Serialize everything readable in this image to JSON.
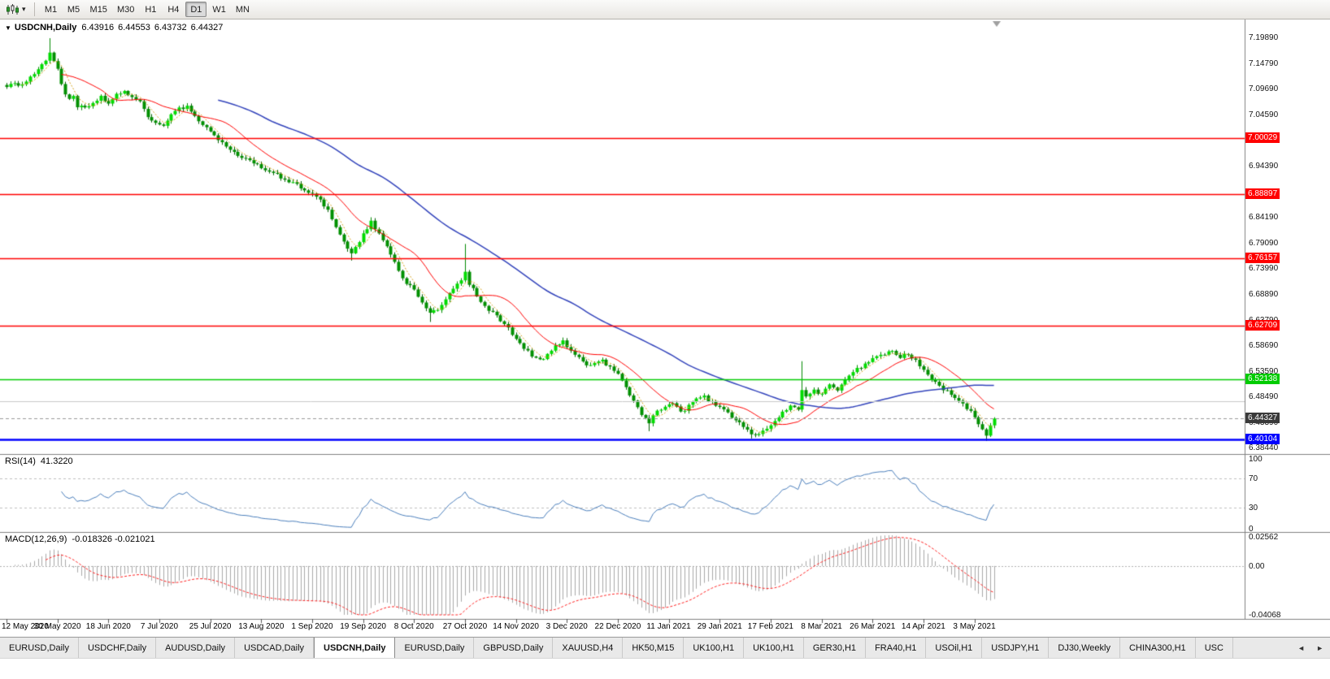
{
  "toolbar": {
    "timeframe_labels": [
      "M1",
      "M5",
      "M15",
      "M30",
      "H1",
      "H4",
      "D1",
      "W1",
      "MN"
    ],
    "active_timeframe": "D1"
  },
  "chart_header": {
    "collapse_arrow": "▼",
    "title": "USDCNH,Daily",
    "open": "6.43916",
    "high": "6.44553",
    "low": "6.43732",
    "close": "6.44327"
  },
  "price_axis": {
    "ticks": [
      "7.19890",
      "7.14790",
      "7.09690",
      "7.04590",
      "6.99490",
      "6.94390",
      "6.89290",
      "6.84190",
      "6.79090",
      "6.73990",
      "6.68890",
      "6.63790",
      "6.58690",
      "6.53590",
      "6.48490",
      "6.43390",
      "6.38440"
    ]
  },
  "rsi_panel": {
    "name": "RSI(14)",
    "value": "41.3220",
    "line_color": "#4A7EBB",
    "guide_levels": [
      70,
      30
    ],
    "ticks": [
      {
        "label": "100",
        "value": 100
      },
      {
        "label": "70",
        "value": 70
      },
      {
        "label": "30",
        "value": 30
      },
      {
        "label": "0",
        "value": 0
      }
    ]
  },
  "macd_panel": {
    "name": "MACD(12,26,9)",
    "value": "-0.018326 -0.021021",
    "histogram_color": "#A8A8A8",
    "signal_color": "#FF2020",
    "range": {
      "max": 0.02562,
      "min": -0.04068
    },
    "ticks": [
      {
        "label": "0.02562",
        "value": 0.02562
      },
      {
        "label": "0.00",
        "value": 0
      },
      {
        "label": "-0.04068",
        "value": -0.04068
      }
    ]
  },
  "time_axis": {
    "labels": [
      "12 May 2020",
      "30 May 2020",
      "18 Jun 2020",
      "7 Jul 2020",
      "25 Jul 2020",
      "13 Aug 2020",
      "1 Sep 2020",
      "19 Sep 2020",
      "8 Oct 2020",
      "27 Oct 2020",
      "14 Nov 2020",
      "3 Dec 2020",
      "22 Dec 2020",
      "11 Jan 2021",
      "29 Jan 2021",
      "17 Feb 2021",
      "8 Mar 2021",
      "26 Mar 2021",
      "14 Apr 2021",
      "3 May 2021"
    ],
    "candles_per_label": 13
  },
  "tabs": {
    "scroll_left": "◄",
    "scroll_right": "►",
    "active_index": 4,
    "items": [
      "EURUSD,Daily",
      "USDCHF,Daily",
      "AUDUSD,Daily",
      "USDCAD,Daily",
      "USDCNH,Daily",
      "EURUSD,Daily",
      "GBPUSD,Daily",
      "XAUUSD,H4",
      "HK50,M15",
      "UK100,H1",
      "UK100,H1",
      "GER30,H1",
      "FRA40,H1",
      "USOil,H1",
      "USDJPY,H1",
      "DJ30,Weekly",
      "CHINA300,H1",
      "USC"
    ]
  },
  "chart_data": {
    "type": "candlestick",
    "symbol": "USDCNH",
    "timeframe": "Daily",
    "visible_count": 253,
    "y_range": {
      "top": 7.23602,
      "bottom": 6.37258
    },
    "y_tick_step": 0.051,
    "levels": [
      {
        "label": "7.00029",
        "value": 7.00029,
        "color": "#FF0000",
        "width": 1.5
      },
      {
        "label": "6.88897",
        "value": 6.88897,
        "color": "#FF0000",
        "width": 1.5
      },
      {
        "label": "6.76157",
        "value": 6.76157,
        "color": "#FF0000",
        "width": 1.5
      },
      {
        "label": "6.62709",
        "value": 6.62709,
        "color": "#FF0000",
        "width": 1.5
      },
      {
        "label": "6.52138",
        "value": 6.52138,
        "color": "#00CC00",
        "width": 1.5
      },
      {
        "label": "6.40104",
        "value": 6.40104,
        "color": "#0000FF",
        "width": 2.5
      },
      {
        "label": "",
        "value": 6.478,
        "color": "#C8C8C8",
        "width": 1
      }
    ],
    "current_price": {
      "label": "6.44327",
      "value": 6.44327,
      "badge_bg": "#3A3A3A",
      "line_color": "#9A9A9A"
    },
    "bull_color": "#00DC00",
    "bear_color": "#009000",
    "ma": [
      {
        "period": 5,
        "color": "#D4A017",
        "width": 1,
        "dash": [
          2,
          2
        ]
      },
      {
        "period": 15,
        "color": "#FF0000",
        "width": 1,
        "dash": []
      },
      {
        "period": 55,
        "color": "#3344BB",
        "width": 1.5,
        "dash": []
      }
    ],
    "close_anchors": [
      [
        0,
        7.1
      ],
      [
        2,
        7.11
      ],
      [
        4,
        7.105
      ],
      [
        6,
        7.125
      ],
      [
        8,
        7.135
      ],
      [
        10,
        7.155
      ],
      [
        11,
        7.168
      ],
      [
        12,
        7.15
      ],
      [
        13,
        7.135
      ],
      [
        14,
        7.11
      ],
      [
        15,
        7.085
      ],
      [
        16,
        7.075
      ],
      [
        17,
        7.082
      ],
      [
        18,
        7.065
      ],
      [
        20,
        7.058
      ],
      [
        22,
        7.07
      ],
      [
        24,
        7.082
      ],
      [
        26,
        7.072
      ],
      [
        28,
        7.085
      ],
      [
        30,
        7.092
      ],
      [
        32,
        7.08
      ],
      [
        34,
        7.072
      ],
      [
        36,
        7.045
      ],
      [
        38,
        7.03
      ],
      [
        40,
        7.028
      ],
      [
        42,
        7.048
      ],
      [
        44,
        7.058
      ],
      [
        46,
        7.062
      ],
      [
        48,
        7.042
      ],
      [
        50,
        7.028
      ],
      [
        52,
        7.015
      ],
      [
        54,
        6.998
      ],
      [
        56,
        6.985
      ],
      [
        58,
        6.975
      ],
      [
        60,
        6.962
      ],
      [
        62,
        6.955
      ],
      [
        64,
        6.948
      ],
      [
        66,
        6.938
      ],
      [
        68,
        6.93
      ],
      [
        70,
        6.922
      ],
      [
        72,
        6.915
      ],
      [
        74,
        6.908
      ],
      [
        76,
        6.898
      ],
      [
        78,
        6.89
      ],
      [
        80,
        6.875
      ],
      [
        82,
        6.858
      ],
      [
        84,
        6.822
      ],
      [
        86,
        6.795
      ],
      [
        88,
        6.772
      ],
      [
        90,
        6.795
      ],
      [
        92,
        6.822
      ],
      [
        93,
        6.835
      ],
      [
        94,
        6.82
      ],
      [
        96,
        6.8
      ],
      [
        98,
        6.768
      ],
      [
        100,
        6.738
      ],
      [
        102,
        6.712
      ],
      [
        104,
        6.698
      ],
      [
        106,
        6.672
      ],
      [
        108,
        6.652
      ],
      [
        110,
        6.662
      ],
      [
        112,
        6.68
      ],
      [
        114,
        6.702
      ],
      [
        116,
        6.72
      ],
      [
        117,
        6.732
      ],
      [
        118,
        6.712
      ],
      [
        120,
        6.688
      ],
      [
        122,
        6.668
      ],
      [
        124,
        6.652
      ],
      [
        126,
        6.638
      ],
      [
        128,
        6.622
      ],
      [
        130,
        6.602
      ],
      [
        132,
        6.585
      ],
      [
        134,
        6.568
      ],
      [
        136,
        6.558
      ],
      [
        138,
        6.568
      ],
      [
        140,
        6.585
      ],
      [
        142,
        6.595
      ],
      [
        144,
        6.578
      ],
      [
        146,
        6.562
      ],
      [
        148,
        6.548
      ],
      [
        150,
        6.556
      ],
      [
        152,
        6.558
      ],
      [
        154,
        6.545
      ],
      [
        156,
        6.53
      ],
      [
        158,
        6.505
      ],
      [
        160,
        6.478
      ],
      [
        162,
        6.452
      ],
      [
        164,
        6.436
      ],
      [
        166,
        6.458
      ],
      [
        168,
        6.466
      ],
      [
        170,
        6.472
      ],
      [
        172,
        6.455
      ],
      [
        174,
        6.468
      ],
      [
        176,
        6.48
      ],
      [
        178,
        6.486
      ],
      [
        180,
        6.475
      ],
      [
        182,
        6.464
      ],
      [
        184,
        6.452
      ],
      [
        186,
        6.44
      ],
      [
        188,
        6.428
      ],
      [
        190,
        6.414
      ],
      [
        192,
        6.41
      ],
      [
        194,
        6.425
      ],
      [
        196,
        6.438
      ],
      [
        198,
        6.458
      ],
      [
        200,
        6.468
      ],
      [
        202,
        6.458
      ],
      [
        203,
        6.498
      ],
      [
        204,
        6.488
      ],
      [
        206,
        6.498
      ],
      [
        208,
        6.492
      ],
      [
        210,
        6.508
      ],
      [
        212,
        6.498
      ],
      [
        214,
        6.518
      ],
      [
        216,
        6.538
      ],
      [
        218,
        6.546
      ],
      [
        220,
        6.556
      ],
      [
        222,
        6.566
      ],
      [
        224,
        6.572
      ],
      [
        226,
        6.576
      ],
      [
        228,
        6.566
      ],
      [
        230,
        6.57
      ],
      [
        232,
        6.558
      ],
      [
        234,
        6.542
      ],
      [
        236,
        6.522
      ],
      [
        238,
        6.506
      ],
      [
        240,
        6.496
      ],
      [
        242,
        6.482
      ],
      [
        244,
        6.47
      ],
      [
        246,
        6.458
      ],
      [
        248,
        6.432
      ],
      [
        250,
        6.406
      ],
      [
        251,
        6.432
      ],
      [
        252,
        6.443
      ]
    ],
    "spike_highs": {
      "11": 7.1989,
      "93": 6.843,
      "117": 6.79,
      "203": 6.557
    },
    "spike_lows": {
      "88": 6.757,
      "108": 6.635,
      "164": 6.418,
      "190": 6.4035,
      "250": 6.3985
    }
  }
}
